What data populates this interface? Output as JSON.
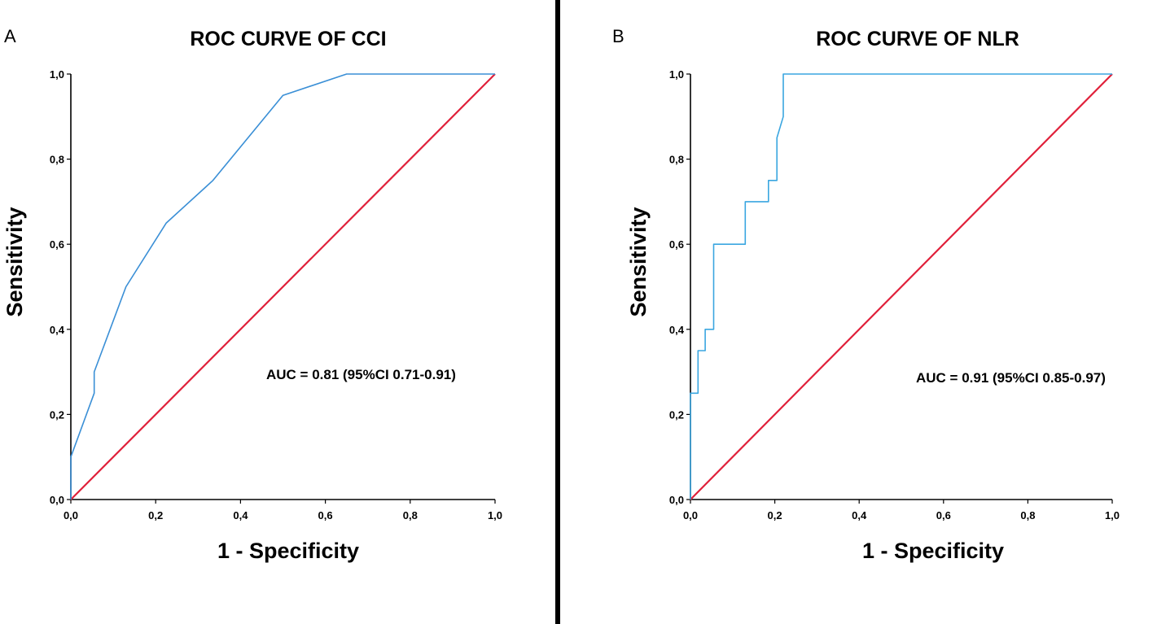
{
  "chart_data": [
    {
      "type": "line",
      "panel": "A",
      "title": "ROC CURVE OF CCI",
      "xlabel": "1 - Specificity",
      "ylabel": "Sensitivity",
      "xlim": [
        0,
        1
      ],
      "ylim": [
        0,
        1
      ],
      "xticks": [
        "0,0",
        "0,2",
        "0,4",
        "0,6",
        "0,8",
        "1,0"
      ],
      "yticks": [
        "0,0",
        "0,2",
        "0,4",
        "0,6",
        "0,8",
        "1,0"
      ],
      "annotation": "AUC = 0.81 (95%CI 0.71-0.91)",
      "series": [
        {
          "name": "ROC curve",
          "color": "#3a8fd6",
          "x": [
            0,
            0,
            0.055,
            0.055,
            0.13,
            0.225,
            0.335,
            0.5,
            0.65,
            1.0
          ],
          "y": [
            0,
            0.1,
            0.25,
            0.3,
            0.5,
            0.65,
            0.75,
            0.95,
            1.0,
            1.0
          ]
        },
        {
          "name": "Reference line",
          "color": "#e0203a",
          "x": [
            0,
            1
          ],
          "y": [
            0,
            1
          ]
        }
      ]
    },
    {
      "type": "line",
      "panel": "B",
      "title": "ROC CURVE OF NLR",
      "xlabel": "1 - Specificity",
      "ylabel": "Sensitivity",
      "xlim": [
        0,
        1
      ],
      "ylim": [
        0,
        1
      ],
      "xticks": [
        "0,0",
        "0,2",
        "0,4",
        "0,6",
        "0,8",
        "1,0"
      ],
      "yticks": [
        "0,0",
        "0,2",
        "0,4",
        "0,6",
        "0,8",
        "1,0"
      ],
      "annotation": "AUC = 0.91 (95%CI 0.85-0.97)",
      "series": [
        {
          "name": "ROC curve",
          "color": "#3aa6e0",
          "x": [
            0,
            0,
            0.018,
            0.018,
            0.035,
            0.035,
            0.055,
            0.055,
            0.13,
            0.13,
            0.185,
            0.185,
            0.205,
            0.205,
            0.22,
            0.22,
            1.0
          ],
          "y": [
            0,
            0.25,
            0.25,
            0.35,
            0.35,
            0.4,
            0.4,
            0.6,
            0.6,
            0.7,
            0.7,
            0.75,
            0.75,
            0.85,
            0.9,
            1.0,
            1.0
          ]
        },
        {
          "name": "Reference line",
          "color": "#e0203a",
          "x": [
            0,
            1
          ],
          "y": [
            0,
            1
          ]
        }
      ]
    }
  ]
}
